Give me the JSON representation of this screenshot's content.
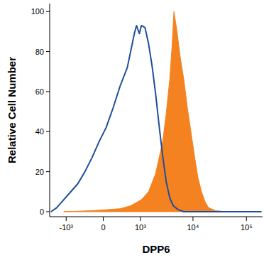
{
  "chart_data": {
    "type": "line",
    "x_label": "DPP6",
    "y_label": "Relative Cell Number",
    "xlim": [
      -2100,
      200000
    ],
    "ylim": [
      -2.5,
      104
    ],
    "xticks": [
      {
        "value": -1000,
        "label": "-10³"
      },
      0,
      {
        "value": 1000,
        "label": "10³"
      },
      {
        "value": 10000,
        "label": "10⁴"
      },
      {
        "value": 100000,
        "label": "10⁵"
      }
    ],
    "yticks": [
      0,
      20,
      40,
      60,
      80,
      100
    ],
    "grid": false,
    "series": [
      {
        "type": "area",
        "color": "#f58220",
        "x": [
          -1120,
          -213,
          51,
          336,
          625,
          1047,
          1447,
          1980,
          2697,
          3145,
          3665,
          4015,
          4400,
          4970,
          5790,
          6744,
          7850,
          9150,
          10650,
          12400,
          14430,
          16800,
          19550,
          26500,
          41800,
          191000
        ],
        "values": [
          0,
          0.5,
          1,
          1.5,
          3,
          6,
          10,
          19,
          35,
          49,
          66,
          81,
          100,
          91,
          77,
          66,
          52,
          40,
          28,
          17,
          10,
          5,
          2,
          0.5,
          0,
          0
        ]
      },
      {
        "type": "line",
        "color": "#1f4e9c",
        "x": [
          -1980,
          -1540,
          -1120,
          -800,
          -560,
          -370,
          -213,
          -77,
          51,
          185,
          336,
          517,
          748,
          830,
          950,
          1047,
          1232,
          1447,
          1692,
          1980,
          2310,
          2697,
          3145,
          3665,
          4265,
          5283,
          6744,
          191000
        ],
        "values": [
          0,
          2,
          6,
          10,
          14,
          20,
          27,
          35,
          42,
          52,
          63,
          72,
          89,
          93,
          89,
          93,
          92,
          84,
          73,
          59,
          43,
          28,
          15,
          7,
          3,
          1,
          0,
          0
        ]
      }
    ]
  }
}
